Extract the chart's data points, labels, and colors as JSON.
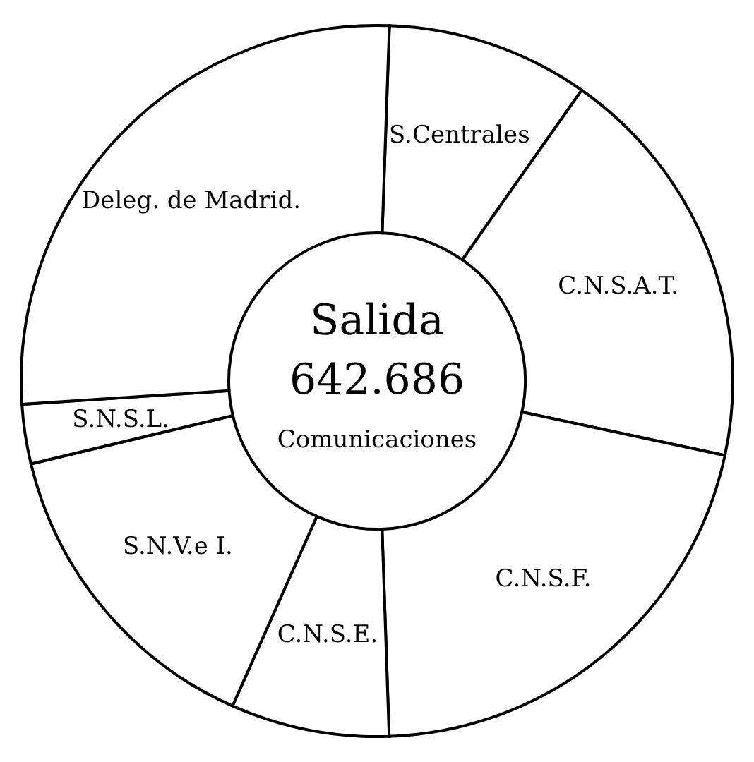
{
  "chart_data": {
    "type": "donut",
    "categories": [
      "S.Centrales",
      "C.N.S.A.T.",
      "C.N.S.F.",
      "C.N.S.E.",
      "S.N.V.e I.",
      "S.N.S.L.",
      "Deleg. de Madrid."
    ],
    "values": [
      9.2,
      18.6,
      21.1,
      7.2,
      14.6,
      2.7,
      26.6
    ],
    "colors": [
      "#ffffff",
      "#ffffff",
      "#ffffff",
      "#ffffff",
      "#ffffff",
      "#ffffff",
      "#ffffff"
    ],
    "annotations": [
      "Salida",
      "642.686",
      "Comunicaciones"
    ]
  }
}
